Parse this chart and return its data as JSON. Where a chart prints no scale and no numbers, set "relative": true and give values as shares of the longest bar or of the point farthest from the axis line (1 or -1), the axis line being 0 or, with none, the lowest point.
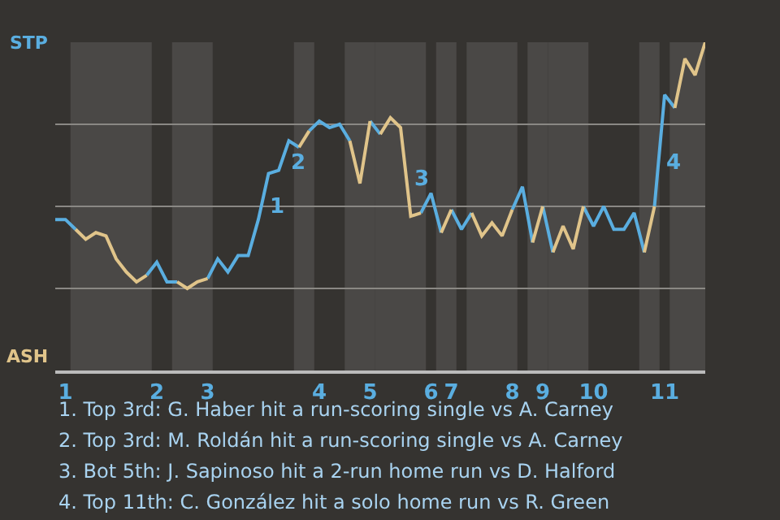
{
  "chart_data": {
    "type": "line",
    "relative": true,
    "categories": [
      null,
      "1",
      null,
      null,
      null,
      null,
      null,
      null,
      null,
      null,
      "2",
      null,
      null,
      null,
      null,
      "3",
      null,
      null,
      null,
      null,
      null,
      null,
      null,
      null,
      null,
      null,
      "4",
      null,
      null,
      null,
      null,
      "5",
      null,
      null,
      null,
      null,
      null,
      "6",
      null,
      "7",
      null,
      null,
      null,
      null,
      null,
      "8",
      null,
      null,
      "9",
      null,
      null,
      null,
      null,
      "10",
      null,
      null,
      null,
      null,
      null,
      null,
      "11",
      null,
      null,
      null,
      null
    ],
    "grid": "y",
    "marker": "none",
    "line_style": "solid",
    "series": [
      {
        "color": "#5aaee0",
        "values": [
          0.46,
          0.46,
          0.43,
          null,
          null,
          null,
          null,
          null,
          null,
          null,
          null,
          null,
          null,
          null,
          null,
          0.28,
          0.34,
          0.3,
          0.35,
          0.35,
          0.46,
          0.6,
          0.61,
          0.7,
          0.68,
          null,
          null,
          null,
          null,
          null,
          null,
          0.76,
          0.72,
          null,
          null,
          null,
          null,
          null,
          null,
          0.49,
          0.43,
          0.48,
          null,
          null,
          null,
          null,
          null,
          null,
          0.5,
          0.36,
          null,
          null,
          null,
          null,
          null,
          null,
          null,
          null,
          null,
          0.5,
          0.84,
          0.8,
          null,
          null,
          null
        ]
      },
      {
        "color": "#5aaee0",
        "values": [
          null,
          null,
          null,
          null,
          null,
          null,
          null,
          null,
          null,
          0.29,
          0.33,
          0.27,
          0.27,
          null,
          null,
          null,
          null,
          null,
          null,
          null,
          null,
          null,
          null,
          null,
          null,
          0.73,
          0.76,
          0.74,
          0.75,
          0.7,
          null,
          null,
          null,
          null,
          null,
          null,
          0.48,
          0.54,
          0.42,
          null,
          null,
          null,
          null,
          null,
          null,
          0.49,
          0.56,
          0.39,
          null,
          null,
          null,
          null,
          0.5,
          0.44,
          0.5,
          0.43,
          0.43,
          0.48,
          0.36,
          null,
          null,
          null,
          null,
          null,
          null
        ]
      },
      {
        "color": "#e0c48a",
        "values": [
          null,
          null,
          0.43,
          0.4,
          0.42,
          0.41,
          0.34,
          0.3,
          0.27,
          0.29,
          null,
          null,
          null,
          null,
          null,
          null,
          null,
          null,
          null,
          null,
          null,
          null,
          null,
          null,
          0.68,
          0.73,
          null,
          null,
          null,
          null,
          null,
          null,
          0.72,
          0.77,
          0.74,
          0.47,
          0.48,
          null,
          null,
          null,
          null,
          0.48,
          0.41,
          0.45,
          0.41,
          0.49,
          null,
          null,
          null,
          0.36,
          0.44,
          0.37,
          0.5,
          null,
          null,
          null,
          null,
          null,
          null,
          null,
          null,
          0.8,
          0.95,
          0.9,
          1
        ]
      },
      {
        "color": "#e0c48a",
        "values": [
          null,
          null,
          null,
          null,
          null,
          null,
          null,
          null,
          null,
          null,
          null,
          null,
          0.27,
          0.25,
          0.27,
          0.28,
          null,
          null,
          null,
          null,
          null,
          null,
          null,
          null,
          null,
          null,
          null,
          null,
          null,
          0.7,
          0.57,
          0.76,
          null,
          null,
          null,
          null,
          null,
          null,
          0.42,
          0.49,
          null,
          null,
          null,
          null,
          null,
          null,
          null,
          0.39,
          0.5,
          null,
          null,
          null,
          null,
          null,
          null,
          null,
          null,
          null,
          0.36,
          0.5,
          null,
          null,
          null,
          null,
          null
        ]
      }
    ],
    "annotations": [
      "STP",
      "ASH",
      "1",
      "2",
      "3",
      "4",
      "1. Top 3rd: G. Haber hit a run-scoring single vs A. Carney",
      "2. Top 3rd: M. Roldán hit a run-scoring single vs A. Carney",
      "3. Bot 5th: J. Sapinoso hit a 2-run home run vs D. Halford",
      "4. Top 11th: C. González hit a solo home run vs R. Green"
    ]
  }
}
